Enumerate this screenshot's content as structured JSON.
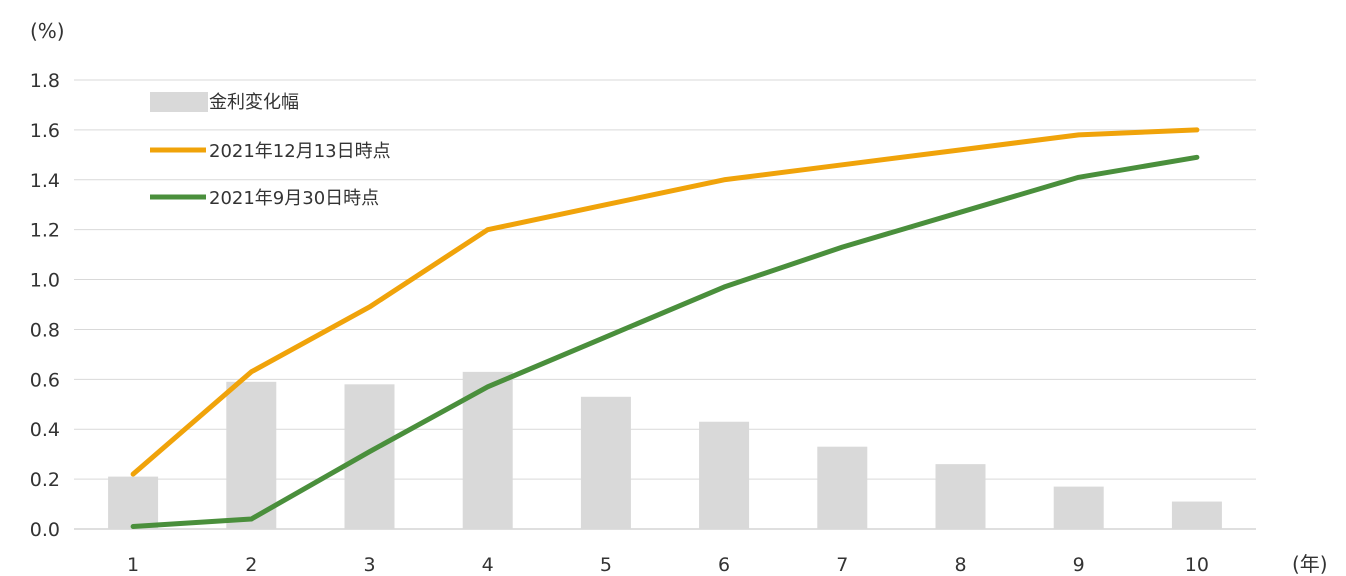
{
  "chart_data": {
    "type": "bar",
    "ylabel": "(%)",
    "xlabel": "(年)",
    "categories": [
      "1",
      "2",
      "3",
      "4",
      "5",
      "6",
      "7",
      "8",
      "9",
      "10"
    ],
    "ylim": [
      0,
      1.8
    ],
    "yticks": [
      "0.0",
      "0.2",
      "0.4",
      "0.6",
      "0.8",
      "1.0",
      "1.2",
      "1.4",
      "1.6",
      "1.8"
    ],
    "grid": true,
    "legend_position": "top-left",
    "series": [
      {
        "name": "金利変化幅",
        "kind": "bar",
        "color": "#d9d9d9",
        "values": [
          0.21,
          0.59,
          0.58,
          0.63,
          0.53,
          0.43,
          0.33,
          0.26,
          0.17,
          0.11
        ]
      },
      {
        "name": "2021年12月13日時点",
        "kind": "line",
        "color": "#f0a30a",
        "values": [
          0.22,
          0.63,
          0.89,
          1.2,
          1.3,
          1.4,
          1.46,
          1.52,
          1.58,
          1.6
        ]
      },
      {
        "name": "2021年9月30日時点",
        "kind": "line",
        "color": "#4a8f3c",
        "values": [
          0.01,
          0.04,
          0.31,
          0.57,
          0.77,
          0.97,
          1.13,
          1.27,
          1.41,
          1.49
        ]
      }
    ]
  }
}
